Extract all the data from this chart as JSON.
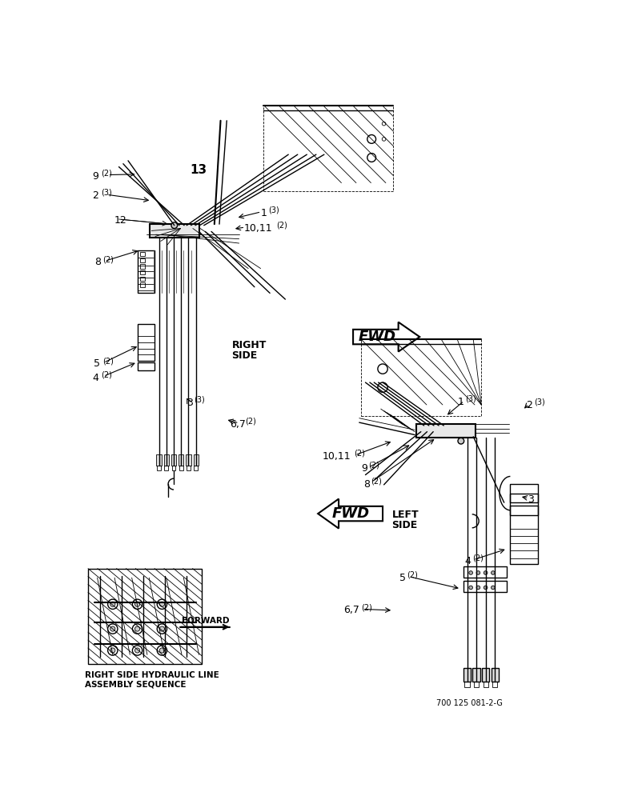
{
  "bg_color": "#ffffff",
  "line_color": "#000000",
  "title_bottom": "700 125 081-2-G",
  "right_side_label": [
    "RIGHT",
    "SIDE"
  ],
  "left_side_label": [
    "LEFT",
    "SIDE"
  ],
  "forward_label": "FORWARD",
  "caption_line1": "RIGHT SIDE HYDRAULIC LINE",
  "caption_line2": "ASSEMBLY SEQUENCE"
}
